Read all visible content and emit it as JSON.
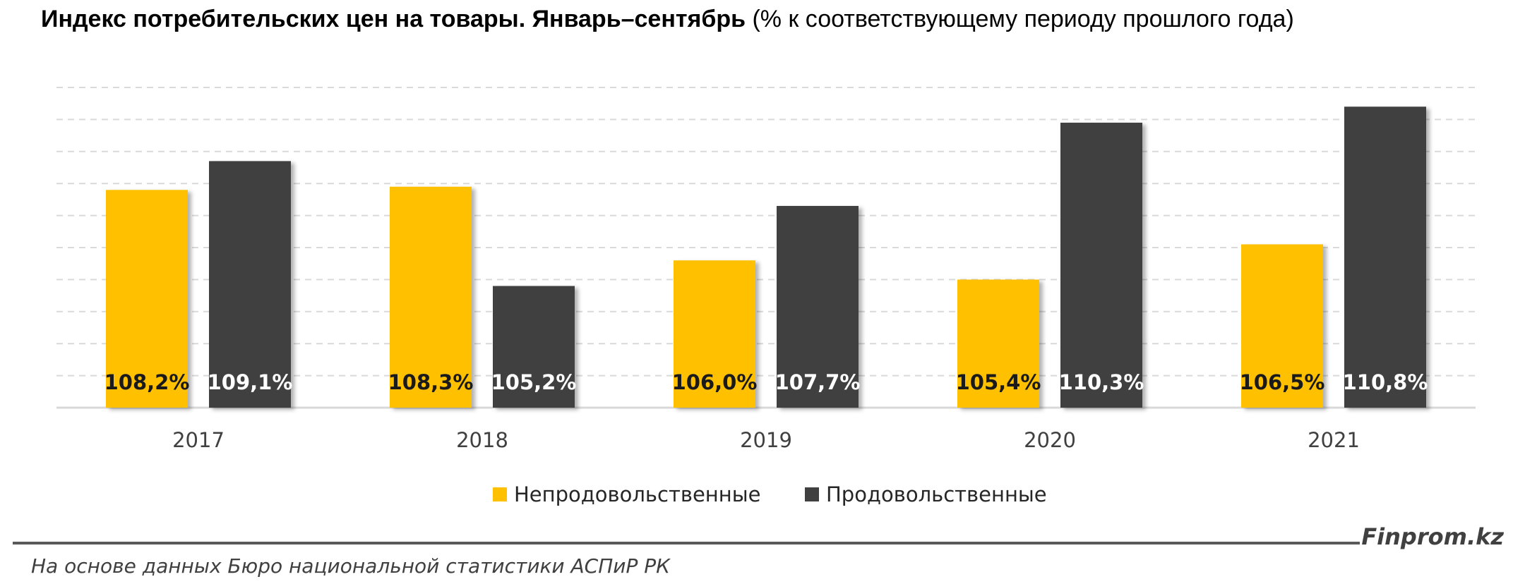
{
  "title": {
    "bold": "Индекс потребительских цен на товары. Январь–сентябрь",
    "normal": "(% к соответствующему периоду прошлого года)"
  },
  "chart_data": {
    "type": "bar",
    "categories": [
      "2017",
      "2018",
      "2019",
      "2020",
      "2021"
    ],
    "series": [
      {
        "name": "Непродовольственные",
        "values": [
          108.2,
          108.3,
          106.0,
          105.4,
          106.5
        ],
        "labels": [
          "108,2%",
          "108,3%",
          "106,0%",
          "105,4%",
          "106,5%"
        ],
        "color": "#FFC000"
      },
      {
        "name": "Продовольственные",
        "values": [
          109.1,
          105.2,
          107.7,
          110.3,
          110.8
        ],
        "labels": [
          "109,1%",
          "105,2%",
          "107,7%",
          "110,3%",
          "110,8%"
        ],
        "color": "#404040"
      }
    ],
    "ylim": [
      101.4,
      111.4
    ],
    "grid": true,
    "legend": "bottom-center"
  },
  "footer": {
    "source": "На основе данных Бюро национальной статистики АСПиР РК",
    "brand": "Finprom.kz"
  }
}
